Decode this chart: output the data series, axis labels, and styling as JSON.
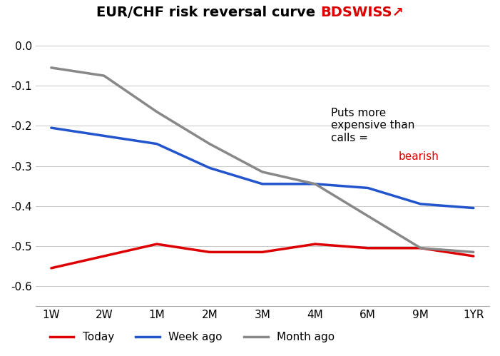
{
  "title_main": "EUR/CHF risk reversal curve ",
  "title_brand": "BDSWISS↗",
  "title_brand_color": "#dd0000",
  "x_labels": [
    "1W",
    "2W",
    "1M",
    "2M",
    "3M",
    "4M",
    "6M",
    "9M",
    "1YR"
  ],
  "today": [
    -0.555,
    -0.525,
    -0.495,
    -0.515,
    -0.515,
    -0.495,
    -0.505,
    -0.505,
    -0.525
  ],
  "week_ago": [
    -0.205,
    -0.225,
    -0.245,
    -0.305,
    -0.345,
    -0.345,
    -0.355,
    -0.395,
    -0.405
  ],
  "month_ago": [
    -0.055,
    -0.075,
    -0.165,
    -0.245,
    -0.315,
    -0.345,
    -0.425,
    -0.505,
    -0.515
  ],
  "today_color": "#dd0000",
  "week_ago_color": "#2255cc",
  "month_ago_color": "#888888",
  "line_width": 2.5,
  "ylim": [
    -0.65,
    0.025
  ],
  "yticks": [
    0.0,
    -0.1,
    -0.2,
    -0.3,
    -0.4,
    -0.5,
    -0.6
  ],
  "annot_black": "Puts more\nexpensive than\ncalls = ",
  "annot_red": "bearish",
  "annot_color": "#000000",
  "annot_red_color": "#dd0000",
  "legend_labels": [
    "Today",
    "Week ago",
    "Month ago"
  ],
  "background_color": "#ffffff",
  "grid_color": "#cccccc"
}
